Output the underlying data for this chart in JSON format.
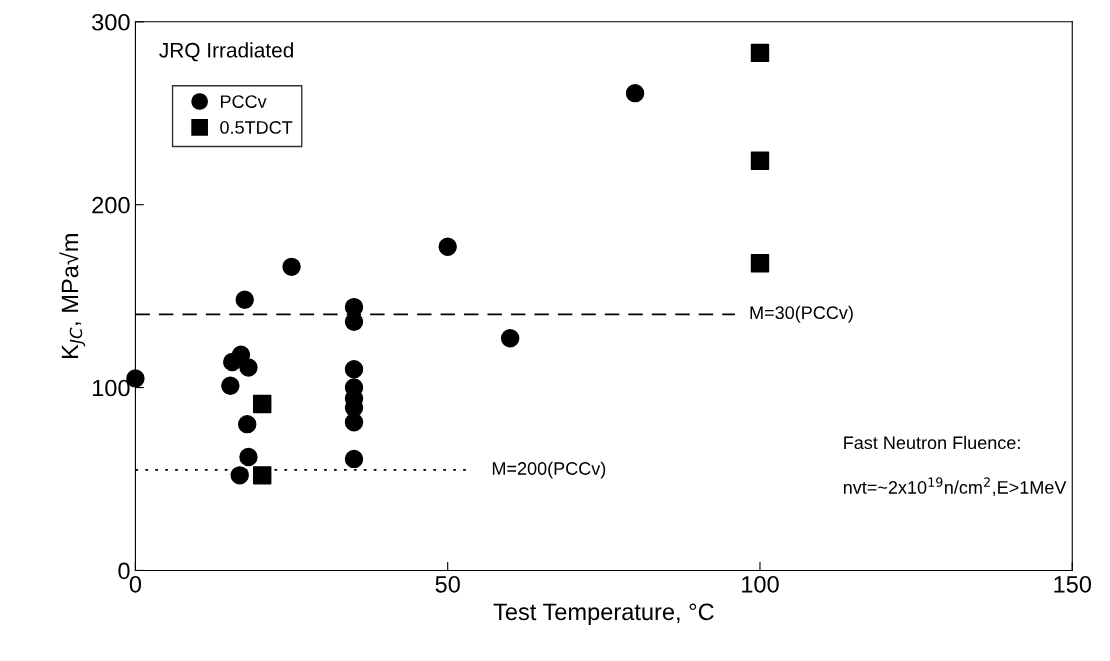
{
  "chart_data": {
    "type": "scatter",
    "xlabel": "Test Temperature, °C",
    "ylabel": "K$_{JC}$, MPa√m",
    "xlim": [
      0,
      150
    ],
    "xticks": [
      0,
      50,
      100,
      150
    ],
    "ylim": [
      0,
      300
    ],
    "yticks": [
      0,
      100,
      200,
      300
    ],
    "grid": false,
    "legend": "top left",
    "series": [
      {
        "name": "PCCv",
        "color": "#000000",
        "marker": "circle",
        "x": [
          0,
          17.5,
          16.9,
          15.5,
          18.1,
          15.2,
          17.9,
          18.1,
          16.7,
          35,
          35,
          35,
          35,
          35,
          35,
          35,
          35,
          25,
          50,
          60,
          80
        ],
        "values": [
          105,
          148,
          118,
          114,
          111,
          101,
          80,
          62,
          52,
          144,
          136,
          110,
          100,
          94,
          89,
          81,
          61,
          166,
          177,
          127,
          261
        ]
      },
      {
        "name": "0.5TDCT",
        "color": "#000000",
        "marker": "square",
        "x": [
          20.3,
          20.3,
          100,
          100,
          100
        ],
        "values": [
          91,
          52,
          283,
          224,
          168
        ]
      }
    ],
    "ref_lines": [
      {
        "axis": "y",
        "value": 140,
        "line_style": "dashed"
      },
      {
        "axis": "y",
        "value": 55,
        "line_style": "dotted"
      }
    ],
    "annotations": [
      "JRQ Irradiated",
      "Fast Neutron Fluence:",
      "nvt=~2x10$^{19}$n/cm$^{2}$,E>1MeV",
      "M=30(PCCv)",
      "M=200(PCCv)"
    ]
  }
}
